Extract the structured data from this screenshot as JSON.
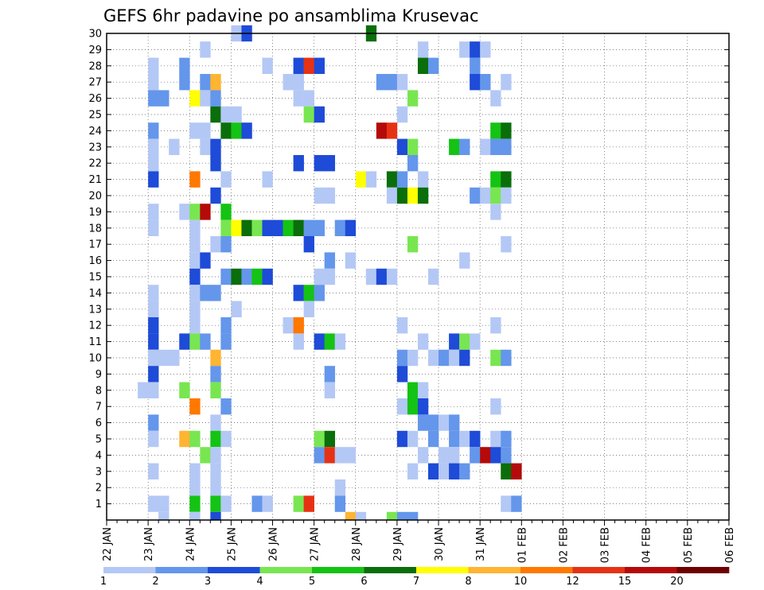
{
  "chart_data": {
    "type": "heatmap",
    "title": "GEFS 6hr padavine po ansamblima Krusevac",
    "xlabel": "",
    "ylabel": "",
    "x_tick_labels": [
      "22 JAN",
      "23 JAN",
      "24 JAN",
      "25 JAN",
      "26 JAN",
      "27 JAN",
      "28 JAN",
      "29 JAN",
      "30 JAN",
      "31 JAN",
      "01 FEB",
      "02 FEB",
      "03 FEB",
      "04 FEB",
      "05 FEB",
      "06 FEB"
    ],
    "y_tick_labels": [
      "1",
      "2",
      "3",
      "4",
      "5",
      "6",
      "7",
      "8",
      "9",
      "10",
      "11",
      "12",
      "13",
      "14",
      "15",
      "16",
      "17",
      "18",
      "19",
      "20",
      "21",
      "22",
      "23",
      "24",
      "25",
      "26",
      "27",
      "28",
      "29",
      "30"
    ],
    "ylim": [
      0,
      30
    ],
    "time_steps_per_day": 4,
    "grid": true,
    "legend_position": "bottom",
    "colorbar": {
      "labels": [
        "1",
        "2",
        "3",
        "4",
        "5",
        "6",
        "7",
        "8",
        "10",
        "12",
        "15",
        "20"
      ],
      "colors": [
        "#b4c8f5",
        "#6496eb",
        "#1e4bd7",
        "#78e650",
        "#14c314",
        "#0a6e0a",
        "#ffff00",
        "#ffb432",
        "#ff7800",
        "#e63214",
        "#b40a0a",
        "#6e0000"
      ]
    },
    "cells_note": "each cell: [member, time_step_index, color_class 1-12]",
    "cells": [
      [
        30,
        12,
        1
      ],
      [
        30,
        13,
        3
      ],
      [
        30,
        25,
        6
      ],
      [
        29,
        9,
        1
      ],
      [
        29,
        30,
        1
      ],
      [
        29,
        34,
        1
      ],
      [
        29,
        35,
        3
      ],
      [
        29,
        36,
        1
      ],
      [
        28,
        4,
        1
      ],
      [
        28,
        7,
        2
      ],
      [
        28,
        15,
        1
      ],
      [
        28,
        18,
        3
      ],
      [
        28,
        19,
        10
      ],
      [
        28,
        20,
        3
      ],
      [
        28,
        30,
        6
      ],
      [
        28,
        31,
        2
      ],
      [
        28,
        35,
        2
      ],
      [
        27,
        4,
        1
      ],
      [
        27,
        7,
        2
      ],
      [
        27,
        9,
        2
      ],
      [
        27,
        10,
        8
      ],
      [
        27,
        17,
        1
      ],
      [
        27,
        18,
        1
      ],
      [
        27,
        26,
        2
      ],
      [
        27,
        27,
        2
      ],
      [
        27,
        28,
        1
      ],
      [
        27,
        35,
        3
      ],
      [
        27,
        36,
        2
      ],
      [
        27,
        38,
        1
      ],
      [
        26,
        4,
        2
      ],
      [
        26,
        5,
        2
      ],
      [
        26,
        8,
        7
      ],
      [
        26,
        9,
        1
      ],
      [
        26,
        10,
        2
      ],
      [
        26,
        18,
        1
      ],
      [
        26,
        19,
        1
      ],
      [
        26,
        29,
        4
      ],
      [
        26,
        37,
        1
      ],
      [
        25,
        10,
        6
      ],
      [
        25,
        11,
        1
      ],
      [
        25,
        12,
        1
      ],
      [
        25,
        19,
        4
      ],
      [
        25,
        20,
        3
      ],
      [
        25,
        28,
        1
      ],
      [
        24,
        4,
        2
      ],
      [
        24,
        8,
        1
      ],
      [
        24,
        9,
        1
      ],
      [
        24,
        11,
        6
      ],
      [
        24,
        12,
        5
      ],
      [
        24,
        13,
        3
      ],
      [
        24,
        26,
        11
      ],
      [
        24,
        27,
        10
      ],
      [
        24,
        37,
        5
      ],
      [
        24,
        38,
        6
      ],
      [
        23,
        4,
        1
      ],
      [
        23,
        6,
        1
      ],
      [
        23,
        9,
        1
      ],
      [
        23,
        10,
        3
      ],
      [
        23,
        28,
        3
      ],
      [
        23,
        29,
        4
      ],
      [
        23,
        33,
        5
      ],
      [
        23,
        34,
        2
      ],
      [
        23,
        36,
        1
      ],
      [
        23,
        37,
        2
      ],
      [
        23,
        38,
        2
      ],
      [
        22,
        4,
        1
      ],
      [
        22,
        10,
        3
      ],
      [
        22,
        18,
        3
      ],
      [
        22,
        20,
        3
      ],
      [
        22,
        21,
        3
      ],
      [
        22,
        29,
        2
      ],
      [
        21,
        4,
        3
      ],
      [
        21,
        8,
        9
      ],
      [
        21,
        11,
        1
      ],
      [
        21,
        15,
        1
      ],
      [
        21,
        24,
        7
      ],
      [
        21,
        25,
        1
      ],
      [
        21,
        27,
        6
      ],
      [
        21,
        28,
        2
      ],
      [
        21,
        30,
        1
      ],
      [
        21,
        37,
        5
      ],
      [
        21,
        38,
        6
      ],
      [
        20,
        10,
        3
      ],
      [
        20,
        20,
        1
      ],
      [
        20,
        21,
        1
      ],
      [
        20,
        27,
        1
      ],
      [
        20,
        28,
        6
      ],
      [
        20,
        29,
        7
      ],
      [
        20,
        30,
        6
      ],
      [
        20,
        35,
        2
      ],
      [
        20,
        36,
        1
      ],
      [
        20,
        37,
        4
      ],
      [
        20,
        38,
        1
      ],
      [
        19,
        4,
        1
      ],
      [
        19,
        7,
        1
      ],
      [
        19,
        8,
        4
      ],
      [
        19,
        9,
        11
      ],
      [
        19,
        11,
        5
      ],
      [
        19,
        37,
        1
      ],
      [
        18,
        4,
        1
      ],
      [
        18,
        8,
        1
      ],
      [
        18,
        11,
        4
      ],
      [
        18,
        12,
        7
      ],
      [
        18,
        13,
        6
      ],
      [
        18,
        14,
        4
      ],
      [
        18,
        15,
        3
      ],
      [
        18,
        16,
        3
      ],
      [
        18,
        17,
        5
      ],
      [
        18,
        18,
        6
      ],
      [
        18,
        19,
        2
      ],
      [
        18,
        20,
        2
      ],
      [
        18,
        22,
        2
      ],
      [
        18,
        23,
        3
      ],
      [
        17,
        8,
        1
      ],
      [
        17,
        10,
        1
      ],
      [
        17,
        11,
        2
      ],
      [
        17,
        19,
        3
      ],
      [
        17,
        29,
        4
      ],
      [
        17,
        38,
        1
      ],
      [
        16,
        8,
        1
      ],
      [
        16,
        9,
        3
      ],
      [
        16,
        21,
        2
      ],
      [
        16,
        23,
        1
      ],
      [
        16,
        34,
        1
      ],
      [
        15,
        8,
        3
      ],
      [
        15,
        11,
        2
      ],
      [
        15,
        12,
        6
      ],
      [
        15,
        13,
        2
      ],
      [
        15,
        14,
        5
      ],
      [
        15,
        15,
        3
      ],
      [
        15,
        20,
        1
      ],
      [
        15,
        21,
        1
      ],
      [
        15,
        25,
        1
      ],
      [
        15,
        26,
        3
      ],
      [
        15,
        27,
        1
      ],
      [
        15,
        31,
        1
      ],
      [
        14,
        4,
        1
      ],
      [
        14,
        8,
        1
      ],
      [
        14,
        9,
        2
      ],
      [
        14,
        10,
        2
      ],
      [
        14,
        18,
        3
      ],
      [
        14,
        19,
        5
      ],
      [
        14,
        20,
        2
      ],
      [
        13,
        4,
        1
      ],
      [
        13,
        8,
        1
      ],
      [
        13,
        12,
        1
      ],
      [
        13,
        19,
        1
      ],
      [
        12,
        4,
        3
      ],
      [
        12,
        8,
        1
      ],
      [
        12,
        11,
        2
      ],
      [
        12,
        17,
        1
      ],
      [
        12,
        18,
        9
      ],
      [
        12,
        28,
        1
      ],
      [
        12,
        37,
        1
      ],
      [
        11,
        4,
        3
      ],
      [
        11,
        7,
        3
      ],
      [
        11,
        8,
        4
      ],
      [
        11,
        9,
        2
      ],
      [
        11,
        11,
        2
      ],
      [
        11,
        18,
        1
      ],
      [
        11,
        20,
        3
      ],
      [
        11,
        21,
        5
      ],
      [
        11,
        22,
        1
      ],
      [
        11,
        30,
        1
      ],
      [
        11,
        33,
        3
      ],
      [
        11,
        34,
        4
      ],
      [
        11,
        35,
        1
      ],
      [
        10,
        4,
        1
      ],
      [
        10,
        5,
        1
      ],
      [
        10,
        6,
        1
      ],
      [
        10,
        10,
        8
      ],
      [
        10,
        28,
        2
      ],
      [
        10,
        29,
        1
      ],
      [
        10,
        31,
        1
      ],
      [
        10,
        32,
        2
      ],
      [
        10,
        33,
        1
      ],
      [
        10,
        34,
        3
      ],
      [
        10,
        37,
        4
      ],
      [
        10,
        38,
        2
      ],
      [
        9,
        4,
        3
      ],
      [
        9,
        10,
        2
      ],
      [
        9,
        21,
        2
      ],
      [
        9,
        28,
        3
      ],
      [
        8,
        3,
        1
      ],
      [
        8,
        4,
        1
      ],
      [
        8,
        7,
        4
      ],
      [
        8,
        10,
        4
      ],
      [
        8,
        21,
        1
      ],
      [
        8,
        29,
        5
      ],
      [
        8,
        30,
        1
      ],
      [
        7,
        8,
        9
      ],
      [
        7,
        11,
        2
      ],
      [
        7,
        28,
        1
      ],
      [
        7,
        29,
        5
      ],
      [
        7,
        30,
        3
      ],
      [
        7,
        37,
        1
      ],
      [
        6,
        4,
        2
      ],
      [
        6,
        10,
        1
      ],
      [
        6,
        30,
        2
      ],
      [
        6,
        31,
        2
      ],
      [
        6,
        32,
        1
      ],
      [
        6,
        33,
        2
      ],
      [
        5,
        4,
        1
      ],
      [
        5,
        7,
        8
      ],
      [
        5,
        8,
        4
      ],
      [
        5,
        10,
        5
      ],
      [
        5,
        11,
        1
      ],
      [
        5,
        20,
        4
      ],
      [
        5,
        21,
        6
      ],
      [
        5,
        28,
        3
      ],
      [
        5,
        29,
        1
      ],
      [
        5,
        31,
        2
      ],
      [
        5,
        33,
        2
      ],
      [
        5,
        34,
        1
      ],
      [
        5,
        35,
        3
      ],
      [
        5,
        37,
        1
      ],
      [
        5,
        38,
        2
      ],
      [
        4,
        9,
        4
      ],
      [
        4,
        10,
        1
      ],
      [
        4,
        20,
        2
      ],
      [
        4,
        21,
        10
      ],
      [
        4,
        22,
        1
      ],
      [
        4,
        23,
        1
      ],
      [
        4,
        30,
        1
      ],
      [
        4,
        32,
        1
      ],
      [
        4,
        33,
        1
      ],
      [
        4,
        35,
        2
      ],
      [
        4,
        36,
        11
      ],
      [
        4,
        37,
        3
      ],
      [
        4,
        38,
        2
      ],
      [
        3,
        4,
        1
      ],
      [
        3,
        8,
        1
      ],
      [
        3,
        10,
        1
      ],
      [
        3,
        29,
        1
      ],
      [
        3,
        31,
        3
      ],
      [
        3,
        32,
        1
      ],
      [
        3,
        33,
        3
      ],
      [
        3,
        34,
        2
      ],
      [
        3,
        38,
        6
      ],
      [
        3,
        39,
        11
      ],
      [
        2,
        8,
        1
      ],
      [
        2,
        10,
        1
      ],
      [
        2,
        22,
        1
      ],
      [
        1,
        4,
        1
      ],
      [
        1,
        5,
        1
      ],
      [
        1,
        8,
        5
      ],
      [
        1,
        10,
        5
      ],
      [
        1,
        11,
        1
      ],
      [
        1,
        14,
        2
      ],
      [
        1,
        15,
        1
      ],
      [
        1,
        18,
        4
      ],
      [
        1,
        19,
        10
      ],
      [
        1,
        22,
        2
      ],
      [
        1,
        38,
        1
      ],
      [
        1,
        39,
        2
      ],
      [
        0,
        5,
        1
      ],
      [
        0,
        8,
        1
      ],
      [
        0,
        10,
        3
      ],
      [
        0,
        23,
        8
      ],
      [
        0,
        24,
        1
      ],
      [
        0,
        27,
        4
      ],
      [
        0,
        28,
        2
      ],
      [
        0,
        29,
        2
      ]
    ]
  }
}
